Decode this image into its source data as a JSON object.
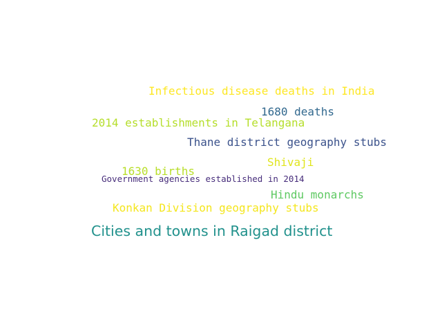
{
  "words": [
    {
      "text": "Infectious disease deaths in India",
      "color": "#fde725"
    },
    {
      "text": "1680 deaths",
      "color": "#31688e"
    },
    {
      "text": "2014 establishments in Telangana",
      "color": "#b5de2b"
    },
    {
      "text": "Thane district geography stubs",
      "color": "#3b528b"
    },
    {
      "text": "Shivaji",
      "color": "#e0e51d"
    },
    {
      "text": "1630 births",
      "color": "#b8de29"
    },
    {
      "text": "Government agencies established in 2014",
      "color": "#472d7b"
    },
    {
      "text": "Hindu monarchs",
      "color": "#5ec962"
    },
    {
      "text": "Konkan Division geography stubs",
      "color": "#f4e61e"
    },
    {
      "text": "Cities and towns in Raigad district",
      "color": "#21918c"
    }
  ]
}
